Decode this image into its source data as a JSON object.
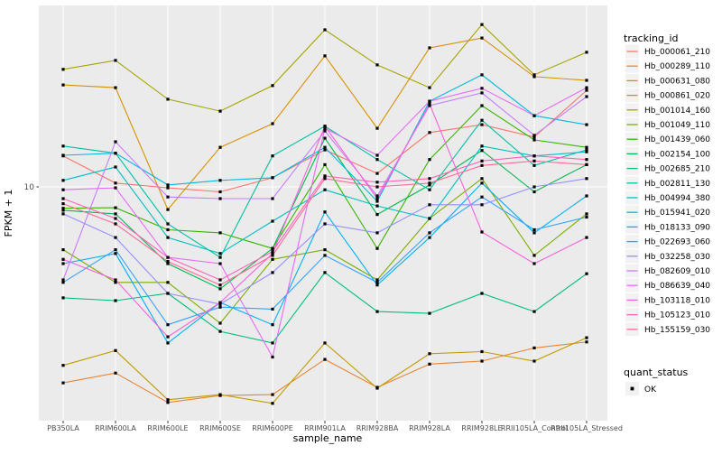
{
  "chart": {
    "y_axis": {
      "label": "FPKM + 1",
      "tick_label": "10"
    },
    "x_axis": {
      "label": "sample_name"
    },
    "legend": {
      "tracking_title": "tracking_id",
      "quant_title": "quant_status",
      "quant_ok_label": "OK",
      "point_color": "#000000",
      "key_fill": "#F2F2F2"
    },
    "panel": {
      "bg_color": "#EBEBEB",
      "grid_color": "#FFFFFF",
      "axis_text_color": "#4D4D4D"
    }
  },
  "chart_data": {
    "type": "line",
    "title": "",
    "xlabel": "sample_name",
    "ylabel": "FPKM + 1",
    "y_scale": "log10",
    "y_breaks": [
      10
    ],
    "ylim": [
      1.0,
      60
    ],
    "grid": true,
    "legend_position": "right",
    "point_shape": "filled-square",
    "point_color": "#000000",
    "quant_status_all": "OK",
    "categories": [
      "PB350LA",
      "RRIM600LA",
      "RRIM600LE",
      "RRIM600SE",
      "RRIM600PE",
      "RRIM901LA",
      "RRIM928BA",
      "RRIM928LA",
      "RRIM928LE",
      "RRII105LA_Control",
      "RRII105LA_Stressed"
    ],
    "series": [
      {
        "name": "Hb_000061_210",
        "color": "#F8766D",
        "values": [
          13.8,
          10.4,
          9.9,
          9.5,
          11.0,
          14.7,
          11.5,
          17.6,
          19.1,
          16.8,
          27.3
        ]
      },
      {
        "name": "Hb_000289_110",
        "color": "#EA8331",
        "values": [
          1.3,
          1.44,
          1.06,
          1.14,
          1.15,
          1.66,
          1.24,
          1.58,
          1.63,
          1.87,
          1.99
        ]
      },
      {
        "name": "Hb_000631_080",
        "color": "#D89000",
        "values": [
          28.9,
          28.1,
          7.9,
          15.1,
          19.3,
          39.1,
          18.4,
          42.5,
          47.1,
          31.5,
          30.3
        ]
      },
      {
        "name": "Hb_000861_020",
        "color": "#C09B00",
        "values": [
          1.56,
          1.82,
          1.09,
          1.15,
          1.05,
          1.97,
          1.23,
          1.76,
          1.8,
          1.63,
          2.08
        ]
      },
      {
        "name": "Hb_001014_160",
        "color": "#A3A500",
        "values": [
          34.0,
          37.3,
          24.9,
          22.0,
          28.7,
          51.3,
          35.6,
          28.1,
          54.2,
          32.1,
          40.6
        ]
      },
      {
        "name": "Hb_001049_110",
        "color": "#7CAE00",
        "values": [
          5.2,
          3.7,
          3.7,
          2.42,
          4.7,
          5.2,
          3.8,
          7.2,
          10.9,
          4.9,
          7.55
        ]
      },
      {
        "name": "Hb_001439_060",
        "color": "#39B600",
        "values": [
          8.0,
          8.05,
          6.4,
          6.2,
          5.27,
          12.6,
          5.27,
          13.3,
          23.3,
          16.3,
          15.1
        ]
      },
      {
        "name": "Hb_002154_100",
        "color": "#00BB4E",
        "values": [
          7.84,
          7.55,
          4.5,
          3.46,
          5.27,
          16.6,
          7.5,
          10.2,
          14.6,
          9.5,
          12.6
        ]
      },
      {
        "name": "Hb_002685_210",
        "color": "#00BF7D",
        "values": [
          3.15,
          3.06,
          3.3,
          2.22,
          1.97,
          4.1,
          2.73,
          2.68,
          3.3,
          2.73,
          4.05
        ]
      },
      {
        "name": "Hb_002811_130",
        "color": "#00C1A3",
        "values": [
          15.3,
          14.2,
          6.8,
          4.8,
          13.8,
          18.8,
          13.3,
          9.7,
          20.0,
          12.5,
          14.7
        ]
      },
      {
        "name": "Hb_004994_380",
        "color": "#00BFC4",
        "values": [
          10.7,
          12.3,
          5.9,
          5.0,
          7.0,
          9.7,
          8.2,
          7.2,
          15.3,
          13.8,
          14.4
        ]
      },
      {
        "name": "Hb_015941_020",
        "color": "#00BAE0",
        "values": [
          13.9,
          14.2,
          10.2,
          10.7,
          11.0,
          15.1,
          8.6,
          24.4,
          32.1,
          21.0,
          19.1
        ]
      },
      {
        "name": "Hb_018133_090",
        "color": "#00B0F6",
        "values": [
          4.5,
          5.0,
          1.97,
          3.0,
          2.38,
          7.7,
          3.6,
          5.9,
          10.4,
          6.2,
          9.1
        ]
      },
      {
        "name": "Hb_022693_060",
        "color": "#35A2FF",
        "values": [
          3.7,
          5.2,
          2.38,
          2.86,
          2.8,
          4.9,
          3.7,
          6.2,
          9.0,
          6.4,
          7.3
        ]
      },
      {
        "name": "Hb_032258_030",
        "color": "#9590FF",
        "values": [
          7.55,
          5.9,
          3.3,
          2.95,
          4.1,
          6.8,
          6.2,
          8.3,
          8.3,
          10.0,
          10.9
        ]
      },
      {
        "name": "Hb_082609_010",
        "color": "#C77CFF",
        "values": [
          3.8,
          16.0,
          9.0,
          8.85,
          8.85,
          17.9,
          9.1,
          23.3,
          26.6,
          17.1,
          25.6
        ]
      },
      {
        "name": "Hb_086639_040",
        "color": "#E76BF3",
        "values": [
          9.7,
          9.9,
          4.8,
          4.5,
          1.7,
          18.4,
          13.9,
          24.4,
          27.9,
          21.0,
          28.1
        ]
      },
      {
        "name": "Hb_103118_010",
        "color": "#FA62DB",
        "values": [
          4.7,
          3.8,
          2.1,
          3.0,
          5.0,
          18.8,
          8.85,
          23.7,
          6.25,
          4.5,
          5.9
        ]
      },
      {
        "name": "Hb_105123_010",
        "color": "#FF62BC",
        "values": [
          8.85,
          7.2,
          4.8,
          3.8,
          5.1,
          11.2,
          10.5,
          10.9,
          13.1,
          13.8,
          13.3
        ]
      },
      {
        "name": "Hb_155159_030",
        "color": "#FF6A98",
        "values": [
          8.4,
          6.8,
          4.6,
          3.6,
          4.9,
          10.9,
          10.0,
          10.4,
          12.5,
          13.1,
          12.6
        ]
      }
    ]
  }
}
